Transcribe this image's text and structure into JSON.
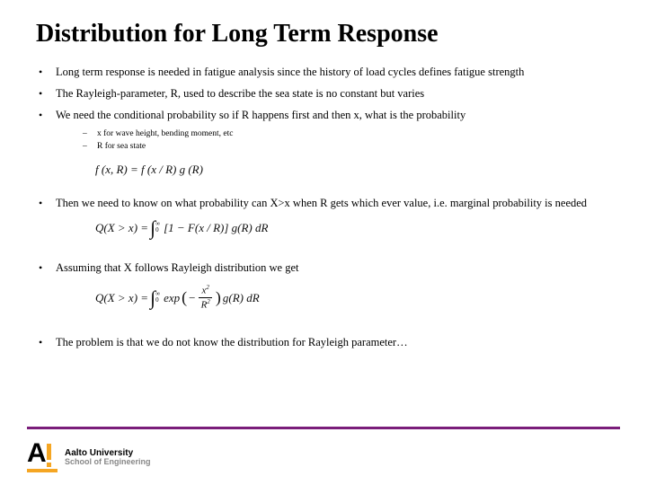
{
  "title": "Distribution for Long Term Response",
  "bullets": {
    "b1": "Long term response is needed in fatigue analysis since the history of load cycles defines fatigue strength",
    "b2": "The Rayleigh-parameter, R, used to describe the sea state is no constant but varies",
    "b3": "We need the conditional probability so if R happens first and then x, what is the probability",
    "b3_sub1": "x for wave height, bending moment, etc",
    "b3_sub2": "R for sea state",
    "b4": "Then we need to know on what probability can X>x when R gets which ever value, i.e. marginal probability is needed",
    "b5": "Assuming that X follows Rayleigh distribution we get",
    "b6": "The problem is that we do not know the distribution for Rayleigh parameter…"
  },
  "formulas": {
    "f1_lhs": "f (x, R) = f (x / R) g (R)",
    "f2_lhs": "Q(X > x) =",
    "f2_rhs": "[1 − F(x / R)] g(R) dR",
    "f3_lhs": "Q(X > x) =",
    "f3_exp": "exp",
    "f3_num": "x",
    "f3_den": "R",
    "f3_tail": "g(R) dR",
    "int_upper": "∞",
    "int_lower": "0",
    "sup2": "2"
  },
  "footer": {
    "logo_line1": "Aalto University",
    "logo_line2": "School of Engineering"
  },
  "colors": {
    "accent_line": "#7a1d7a",
    "logo_accent": "#f5a623"
  }
}
